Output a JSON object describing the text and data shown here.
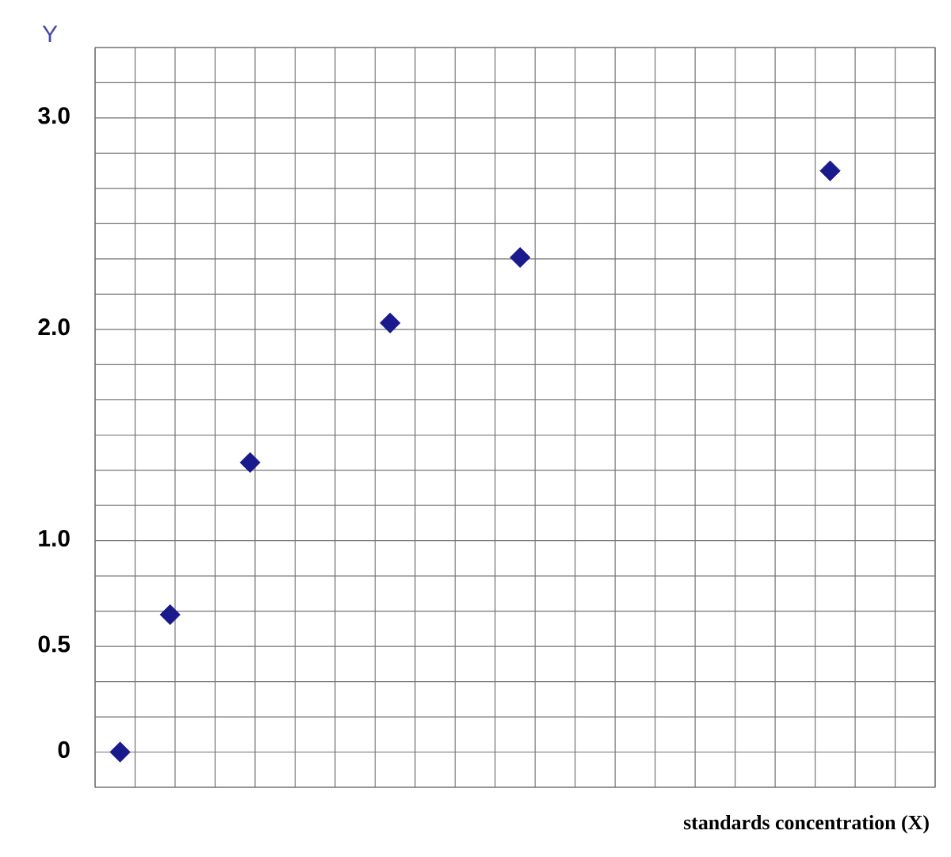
{
  "chart_data": {
    "type": "scatter",
    "xlabel": "standards concentration (X)",
    "ylabel": "Y",
    "categories": [
      null,
      null,
      null,
      null,
      null,
      null,
      null,
      null,
      null,
      null,
      null,
      null,
      null,
      null,
      null,
      null,
      null,
      null,
      null,
      null,
      null,
      null,
      null,
      null,
      null,
      null,
      null,
      null,
      null,
      null,
      null,
      null,
      null,
      null,
      null,
      null,
      null,
      null,
      null,
      null,
      null,
      null,
      null,
      null,
      null,
      null,
      null,
      null,
      null,
      null,
      null,
      null,
      null,
      null,
      null,
      null,
      null,
      null,
      null,
      null,
      null,
      null,
      null,
      null,
      null,
      null,
      null,
      null,
      null,
      null,
      null,
      null,
      null,
      null,
      null,
      null,
      null,
      null,
      null,
      null,
      null,
      null,
      null,
      null
    ],
    "values": [
      null,
      null,
      0.0,
      null,
      null,
      null,
      null,
      0.65,
      null,
      null,
      null,
      null,
      null,
      null,
      null,
      1.37,
      null,
      null,
      null,
      null,
      null,
      null,
      null,
      null,
      null,
      null,
      null,
      null,
      null,
      2.03,
      null,
      null,
      null,
      null,
      null,
      null,
      null,
      null,
      null,
      null,
      null,
      null,
      2.34,
      null,
      null,
      null,
      null,
      null,
      null,
      null,
      null,
      null,
      null,
      null,
      null,
      null,
      null,
      null,
      null,
      null,
      null,
      null,
      null,
      null,
      null,
      null,
      null,
      null,
      null,
      null,
      null,
      null,
      null,
      2.75,
      null,
      null,
      null,
      null,
      null,
      null,
      null,
      null,
      null,
      null
    ],
    "color": "#1a1a8c",
    "marker": "diamond",
    "ylim": [
      -0.1667,
      3.3333
    ],
    "yticks": [
      {
        "value": 0,
        "label": "0"
      },
      {
        "value": 0.5,
        "label": "0.5"
      },
      {
        "value": 1.0,
        "label": "1.0"
      },
      {
        "value": 2.0,
        "label": "2.0"
      },
      {
        "value": 3.0,
        "label": "3.0"
      }
    ],
    "grid": true,
    "tick_labels": "y"
  }
}
